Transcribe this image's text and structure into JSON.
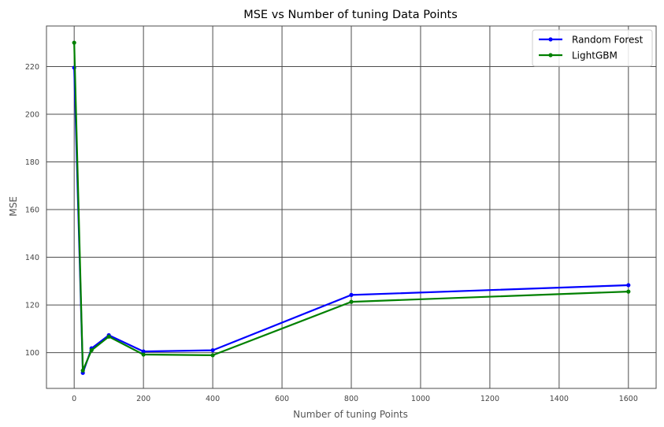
{
  "chart_data": {
    "type": "line",
    "title": "MSE vs Number of tuning Data Points",
    "xlabel": "Number of tuning Points",
    "ylabel": "MSE",
    "xlim": [
      -80,
      1680
    ],
    "ylim": [
      85,
      237
    ],
    "x_ticks": [
      0,
      200,
      400,
      600,
      800,
      1000,
      1200,
      1400,
      1600
    ],
    "y_ticks": [
      100,
      120,
      140,
      160,
      180,
      200,
      220
    ],
    "grid": true,
    "legend_position": "top-right",
    "x": [
      0,
      25,
      50,
      100,
      200,
      400,
      800,
      1600
    ],
    "series": [
      {
        "name": "Random Forest",
        "color": "#0000ff",
        "values": [
          219.5,
          91.5,
          101.8,
          107.3,
          100.5,
          101.0,
          124.2,
          128.3
        ]
      },
      {
        "name": "LightGBM",
        "color": "#008000",
        "values": [
          230.0,
          92.5,
          101.0,
          106.7,
          99.2,
          98.9,
          121.3,
          125.6
        ]
      }
    ]
  }
}
